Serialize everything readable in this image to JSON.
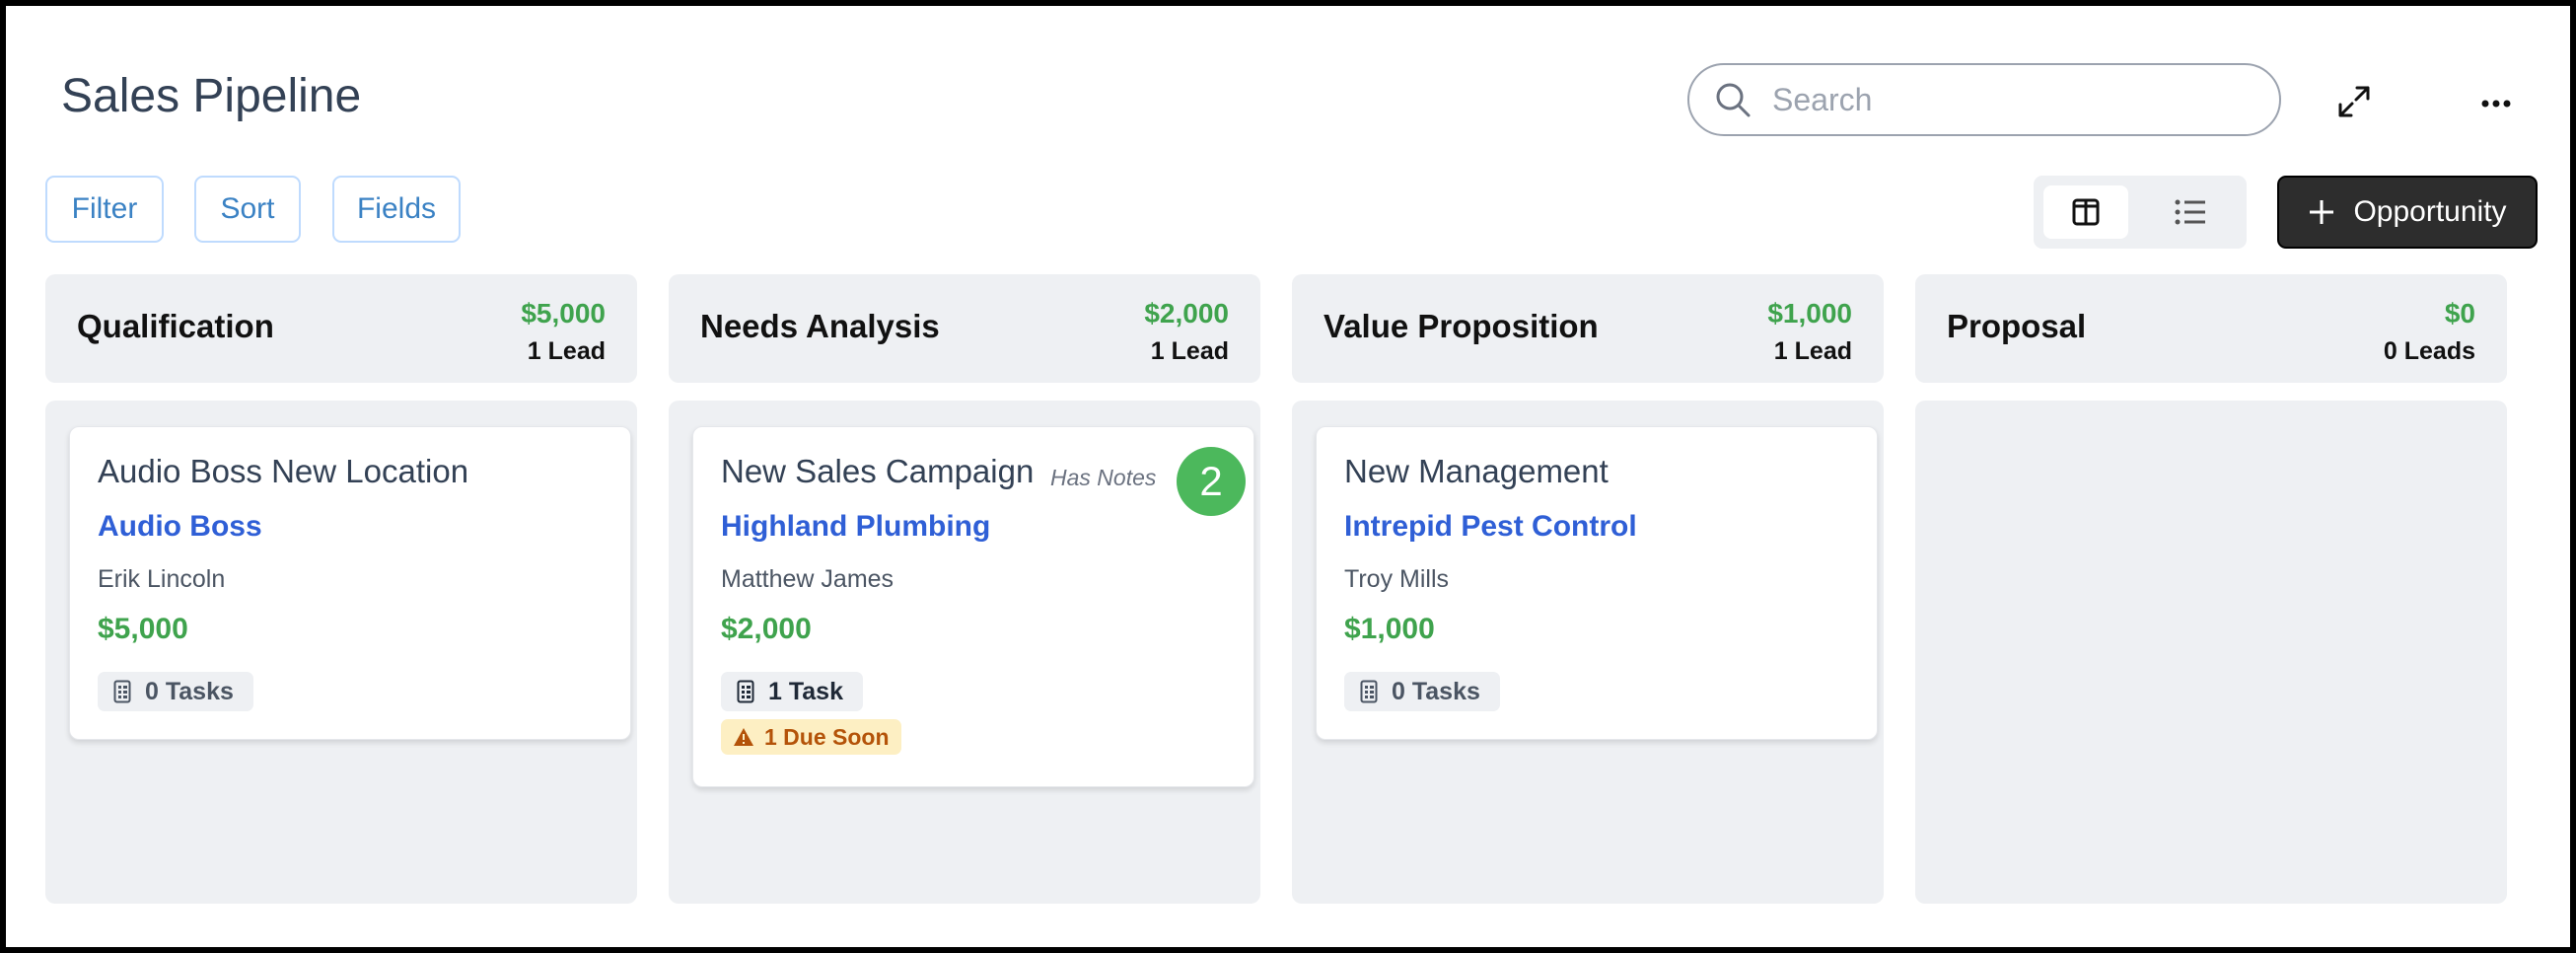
{
  "header": {
    "title": "Sales Pipeline",
    "search_placeholder": "Search"
  },
  "toolbar": {
    "filter_label": "Filter",
    "sort_label": "Sort",
    "fields_label": "Fields",
    "view_modes": [
      {
        "icon": "board-view-icon",
        "active": true
      },
      {
        "icon": "list-view-icon",
        "active": false
      }
    ],
    "add_label": "Opportunity"
  },
  "columns": [
    {
      "title": "Qualification",
      "amount": "$5,000",
      "count": "1 Lead",
      "cards": [
        {
          "title": "Audio Boss New Location",
          "company": "Audio Boss",
          "contact": "Erik Lincoln",
          "amount": "$5,000",
          "tasks": "0 Tasks"
        }
      ]
    },
    {
      "title": "Needs Analysis",
      "amount": "$2,000",
      "count": "1 Lead",
      "cards": [
        {
          "title": "New Sales Campaign",
          "notes": "Has Notes",
          "badge": "2",
          "company": "Highland Plumbing",
          "contact": "Matthew James",
          "amount": "$2,000",
          "tasks": "1 Task",
          "due": "1 Due Soon"
        }
      ]
    },
    {
      "title": "Value Proposition",
      "amount": "$1,000",
      "count": "1 Lead",
      "cards": [
        {
          "title": "New Management",
          "company": "Intrepid Pest Control",
          "contact": "Troy Mills",
          "amount": "$1,000",
          "tasks": "0 Tasks"
        }
      ]
    },
    {
      "title": "Proposal",
      "amount": "$0",
      "count": "0 Leads",
      "cards": []
    }
  ],
  "colors": {
    "accent_green": "#3fa34d",
    "link_blue": "#2f5fd6",
    "warning": "#b45309"
  }
}
